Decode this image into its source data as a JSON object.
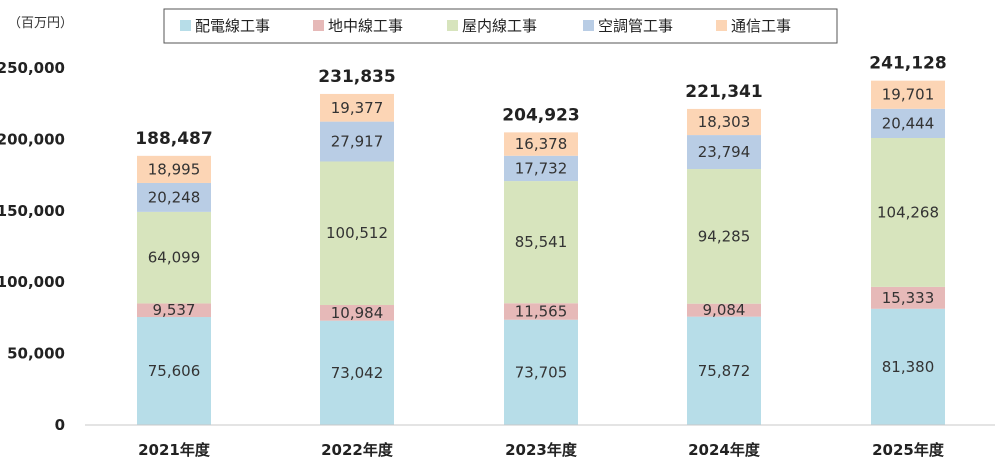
{
  "chart_data": {
    "type": "bar",
    "stacked": true,
    "unit_label": "（百万円）",
    "categories": [
      "2021年度",
      "2022年度",
      "2023年度",
      "2024年度",
      "2025年度"
    ],
    "series": [
      {
        "name": "配電線工事",
        "color": "#b7dde8",
        "values": [
          75606,
          73042,
          73705,
          75872,
          81380
        ]
      },
      {
        "name": "地中線工事",
        "color": "#e6b9b8",
        "values": [
          9537,
          10984,
          11565,
          9084,
          15333
        ]
      },
      {
        "name": "屋内線工事",
        "color": "#d7e4bd",
        "values": [
          64099,
          100512,
          85541,
          94285,
          104268
        ]
      },
      {
        "name": "空調管工事",
        "color": "#b9cde5",
        "values": [
          20248,
          27917,
          17732,
          23794,
          20444
        ]
      },
      {
        "name": "通信工事",
        "color": "#fcd5b5",
        "values": [
          18995,
          19377,
          16378,
          18303,
          19701
        ]
      }
    ],
    "totals": [
      "188,487",
      "231,835",
      "204,923",
      "221,341",
      "241,128"
    ],
    "ylim": [
      0,
      250000
    ],
    "yticks": [
      {
        "value": 0,
        "label": "0"
      },
      {
        "value": 50000,
        "label": "50,000"
      },
      {
        "value": 100000,
        "label": "100,000"
      },
      {
        "value": 150000,
        "label": "150,000"
      },
      {
        "value": 200000,
        "label": "200,000"
      },
      {
        "value": 250000,
        "label": "250,000"
      }
    ],
    "legend_position": "top"
  }
}
